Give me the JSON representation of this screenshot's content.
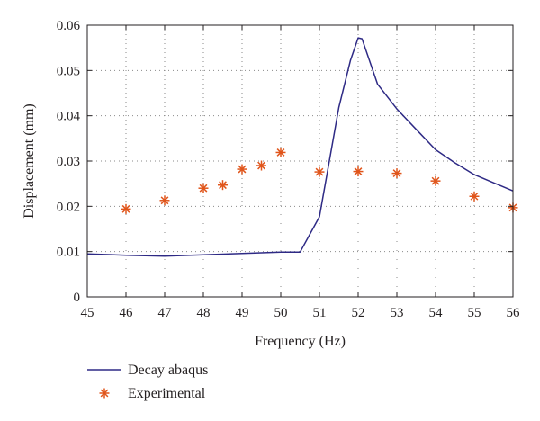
{
  "chart_data": {
    "type": "line",
    "xlabel": "Frequency (Hz)",
    "ylabel": "Displacement (mm)",
    "xlim": [
      45,
      56
    ],
    "ylim": [
      0,
      0.06
    ],
    "x_ticks": [
      "45",
      "46",
      "47",
      "48",
      "49",
      "50",
      "51",
      "52",
      "53",
      "54",
      "55",
      "56"
    ],
    "y_ticks": [
      "0",
      "0.01",
      "0.02",
      "0.03",
      "0.04",
      "0.05",
      "0.06"
    ],
    "grid": true,
    "legend_position": "bottom-left outside",
    "series": [
      {
        "name": "Decay abaqus",
        "style": "line",
        "color": "#2e2a85",
        "x": [
          45,
          46,
          47,
          48,
          49,
          50,
          50.5,
          51,
          51.5,
          51.8,
          52,
          52.1,
          52.5,
          53,
          53.5,
          54,
          54.5,
          55,
          55.5,
          56
        ],
        "y": [
          0.0095,
          0.0092,
          0.009,
          0.0093,
          0.0096,
          0.0099,
          0.0099,
          0.0177,
          0.0418,
          0.0522,
          0.0572,
          0.057,
          0.047,
          0.0415,
          0.037,
          0.0325,
          0.0296,
          0.027,
          0.0252,
          0.0234
        ]
      },
      {
        "name": "Experimental",
        "style": "marker",
        "marker": "*",
        "color": "#e0551b",
        "x": [
          46,
          47,
          48,
          48.5,
          49,
          49.5,
          50,
          51,
          52,
          53,
          54,
          55,
          56
        ],
        "y": [
          0.0194,
          0.0213,
          0.024,
          0.0247,
          0.0282,
          0.029,
          0.0319,
          0.0276,
          0.0277,
          0.0273,
          0.0256,
          0.0222,
          0.0197
        ]
      }
    ]
  }
}
